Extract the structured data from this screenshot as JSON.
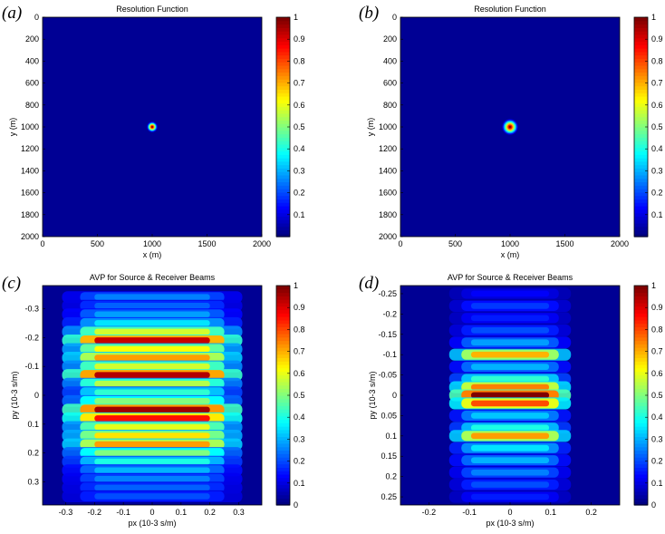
{
  "figure": {
    "panels": [
      {
        "letter": "(a)",
        "title": "Resolution Function",
        "xlabel": "x (m)",
        "ylabel": "y (m)"
      },
      {
        "letter": "(b)",
        "title": "Resolution Function",
        "xlabel": "x (m)",
        "ylabel": "y (m)"
      },
      {
        "letter": "(c)",
        "title": "AVP for Source & Receiver Beams",
        "xlabel": "px (10-3 s/m)",
        "ylabel": "py (10-3 s/m)"
      },
      {
        "letter": "(d)",
        "title": "AVP for Source & Receiver Beams",
        "xlabel": "px (10-3 s/m)",
        "ylabel": "py (10-3 s/m)"
      }
    ]
  },
  "colormap": {
    "name": "jet",
    "stops": [
      "#00008f",
      "#0000ff",
      "#00ffff",
      "#ffff00",
      "#ff0000",
      "#800000"
    ]
  },
  "chart_data": [
    {
      "type": "heatmap",
      "title": "Resolution Function",
      "xlabel": "x (m)",
      "ylabel": "y (m)",
      "xlim": [
        0,
        2000
      ],
      "ylim": [
        0,
        2000
      ],
      "y_reversed": true,
      "xticks": [
        "0",
        "500",
        "1000",
        "1500",
        "2000"
      ],
      "yticks": [
        "0",
        "200",
        "400",
        "600",
        "800",
        "1000",
        "1200",
        "1400",
        "1600",
        "1800",
        "2000"
      ],
      "clim": [
        0,
        1
      ],
      "colorbar_ticks": [
        "0.1",
        "0.2",
        "0.3",
        "0.4",
        "0.5",
        "0.6",
        "0.7",
        "0.8",
        "0.9",
        "1"
      ],
      "peak": {
        "x": 1000,
        "y": 1000,
        "value": 1,
        "width_m": 40
      },
      "background_value": 0
    },
    {
      "type": "heatmap",
      "title": "Resolution Function",
      "xlabel": "x (m)",
      "ylabel": "y (m)",
      "xlim": [
        0,
        2000
      ],
      "ylim": [
        0,
        2000
      ],
      "y_reversed": true,
      "xticks": [
        "0",
        "500",
        "1000",
        "1500",
        "2000"
      ],
      "yticks": [
        "0",
        "200",
        "400",
        "600",
        "800",
        "1000",
        "1200",
        "1400",
        "1600",
        "1800",
        "2000"
      ],
      "clim": [
        0,
        1
      ],
      "colorbar_ticks": [
        "0.1",
        "0.2",
        "0.3",
        "0.4",
        "0.5",
        "0.6",
        "0.7",
        "0.8",
        "0.9",
        "1"
      ],
      "peak": {
        "x": 1000,
        "y": 1000,
        "value": 1,
        "width_m": 60
      },
      "background_value": 0
    },
    {
      "type": "heatmap",
      "title": "AVP for Source & Receiver Beams",
      "xlabel": "px (10-3 s/m)",
      "ylabel": "py (10-3 s/m)",
      "xlim": [
        -0.38,
        0.38
      ],
      "ylim": [
        -0.38,
        0.38
      ],
      "y_reversed": true,
      "xticks": [
        "-0.3",
        "-0.2",
        "-0.1",
        "0",
        "0.1",
        "0.2",
        "0.3"
      ],
      "yticks": [
        "-0.3",
        "-0.2",
        "-0.1",
        "0",
        "0.1",
        "0.2",
        "0.3"
      ],
      "clim": [
        0,
        1
      ],
      "colorbar_ticks": [
        "0",
        "0.1",
        "0.2",
        "0.3",
        "0.4",
        "0.5",
        "0.6",
        "0.7",
        "0.8",
        "0.9",
        "1"
      ],
      "stripes": [
        {
          "py": -0.34,
          "value": 0.25
        },
        {
          "py": -0.31,
          "value": 0.22
        },
        {
          "py": -0.28,
          "value": 0.28
        },
        {
          "py": -0.25,
          "value": 0.35
        },
        {
          "py": -0.22,
          "value": 0.58
        },
        {
          "py": -0.19,
          "value": 0.93
        },
        {
          "py": -0.16,
          "value": 0.62
        },
        {
          "py": -0.13,
          "value": 0.72
        },
        {
          "py": -0.1,
          "value": 0.58
        },
        {
          "py": -0.07,
          "value": 0.95
        },
        {
          "py": -0.04,
          "value": 0.55
        },
        {
          "py": -0.01,
          "value": 0.42
        },
        {
          "py": 0.02,
          "value": 0.5
        },
        {
          "py": 0.05,
          "value": 0.97
        },
        {
          "py": 0.08,
          "value": 0.86
        },
        {
          "py": 0.11,
          "value": 0.6
        },
        {
          "py": 0.14,
          "value": 0.65
        },
        {
          "py": 0.17,
          "value": 0.72
        },
        {
          "py": 0.2,
          "value": 0.5
        },
        {
          "py": 0.23,
          "value": 0.4
        },
        {
          "py": 0.26,
          "value": 0.3
        },
        {
          "py": 0.29,
          "value": 0.25
        },
        {
          "py": 0.32,
          "value": 0.22
        },
        {
          "py": 0.35,
          "value": 0.2
        }
      ],
      "px_halfwidth": 0.25
    },
    {
      "type": "heatmap",
      "title": "AVP for Source & Receiver Beams",
      "xlabel": "px (10-3 s/m)",
      "ylabel": "py (10-3 s/m)",
      "xlim": [
        -0.27,
        0.27
      ],
      "ylim": [
        -0.27,
        0.27
      ],
      "y_reversed": true,
      "xticks": [
        "-0.2",
        "-0.1",
        "0",
        "0.1",
        "0.2"
      ],
      "yticks": [
        "-0.25",
        "-0.2",
        "-0.15",
        "-0.1",
        "-0.05",
        "0",
        "0.05",
        "0.1",
        "0.15",
        "0.2",
        "0.25"
      ],
      "clim": [
        0,
        1
      ],
      "colorbar_ticks": [
        "0",
        "0.1",
        "0.2",
        "0.3",
        "0.4",
        "0.5",
        "0.6",
        "0.7",
        "0.8",
        "0.9",
        "1"
      ],
      "stripes": [
        {
          "py": -0.25,
          "value": 0.12
        },
        {
          "py": -0.22,
          "value": 0.18
        },
        {
          "py": -0.19,
          "value": 0.15
        },
        {
          "py": -0.16,
          "value": 0.2
        },
        {
          "py": -0.13,
          "value": 0.28
        },
        {
          "py": -0.1,
          "value": 0.7
        },
        {
          "py": -0.07,
          "value": 0.3
        },
        {
          "py": -0.04,
          "value": 0.42
        },
        {
          "py": -0.02,
          "value": 0.75
        },
        {
          "py": 0.0,
          "value": 1.0
        },
        {
          "py": 0.02,
          "value": 0.8
        },
        {
          "py": 0.05,
          "value": 0.32
        },
        {
          "py": 0.08,
          "value": 0.4
        },
        {
          "py": 0.1,
          "value": 0.72
        },
        {
          "py": 0.13,
          "value": 0.35
        },
        {
          "py": 0.16,
          "value": 0.3
        },
        {
          "py": 0.19,
          "value": 0.25
        },
        {
          "py": 0.22,
          "value": 0.2
        },
        {
          "py": 0.25,
          "value": 0.15
        }
      ],
      "px_halfwidth": 0.12
    }
  ]
}
